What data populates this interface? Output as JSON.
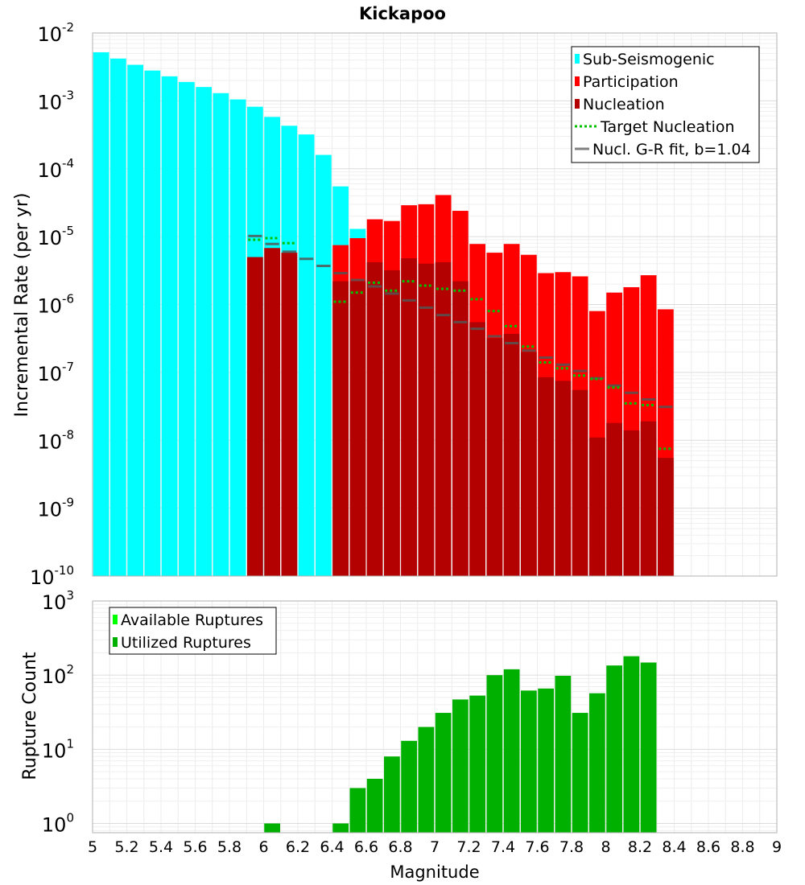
{
  "title": "Kickapoo",
  "xlabel": "Magnitude",
  "x_ticks": [
    "5",
    "5.2",
    "5.4",
    "5.6",
    "5.8",
    "6",
    "6.2",
    "6.4",
    "6.6",
    "6.8",
    "7",
    "7.2",
    "7.4",
    "7.6",
    "7.8",
    "8",
    "8.2",
    "8.4",
    "8.6",
    "8.8",
    "9"
  ],
  "chart_data": [
    {
      "type": "bar",
      "scale": "log",
      "ylabel": "Incremental Rate (per yr)",
      "xlim": [
        5,
        9
      ],
      "ylim": [
        1e-10,
        0.01
      ],
      "y_ticks": [
        {
          "base": "10",
          "exp": "-2"
        },
        {
          "base": "10",
          "exp": "-3"
        },
        {
          "base": "10",
          "exp": "-4"
        },
        {
          "base": "10",
          "exp": "-5"
        },
        {
          "base": "10",
          "exp": "-6"
        },
        {
          "base": "10",
          "exp": "-7"
        },
        {
          "base": "10",
          "exp": "-8"
        },
        {
          "base": "10",
          "exp": "-9"
        },
        {
          "base": "10",
          "exp": "-10"
        }
      ],
      "legend_position": "top-right",
      "legend": [
        "Sub-Seismogenic",
        "Participation",
        "Nucleation",
        "Target Nucleation",
        "Nucl. G-R fit, b=1.04"
      ],
      "colors": {
        "sub": "#00ffff",
        "participation": "#ff0000",
        "nucleation": "#b30000",
        "target": "#00c000",
        "fit": "#808080"
      },
      "series": [
        {
          "name": "Sub-Seismogenic",
          "x": [
            5.05,
            5.15,
            5.25,
            5.35,
            5.45,
            5.55,
            5.65,
            5.75,
            5.85,
            5.95,
            6.05,
            6.15,
            6.25,
            6.35,
            6.45,
            6.55
          ],
          "values": [
            0.0052,
            0.0042,
            0.0034,
            0.0028,
            0.0023,
            0.0019,
            0.0016,
            0.0013,
            0.00105,
            0.00082,
            0.00058,
            0.00043,
            0.00032,
            0.00016,
            5.5e-05,
            1.3e-05
          ]
        },
        {
          "name": "Participation",
          "x": [
            6.45,
            6.55,
            6.65,
            6.75,
            6.85,
            6.95,
            7.05,
            7.15,
            7.25,
            7.35,
            7.45,
            7.55,
            7.65,
            7.75,
            7.85,
            7.95,
            8.05,
            8.15,
            8.25,
            8.35
          ],
          "values": [
            7.5e-06,
            9.5e-06,
            1.8e-05,
            1.7e-05,
            2.9e-05,
            3e-05,
            4.1e-05,
            2.4e-05,
            7.8e-06,
            5.8e-06,
            7.8e-06,
            5.4e-06,
            2.9e-06,
            3e-06,
            2.6e-06,
            8e-07,
            1.5e-06,
            1.8e-06,
            2.7e-06,
            8.5e-07
          ]
        },
        {
          "name": "Nucleation",
          "x": [
            5.95,
            6.05,
            6.15,
            6.45,
            6.55,
            6.65,
            6.75,
            6.85,
            6.95,
            7.05,
            7.15,
            7.25,
            7.35,
            7.45,
            7.55,
            7.65,
            7.75,
            7.85,
            7.95,
            8.05,
            8.15,
            8.25,
            8.35
          ],
          "values": [
            5e-06,
            6.8e-06,
            5.8e-06,
            2.2e-06,
            2.2e-06,
            4.2e-06,
            3.2e-06,
            4.8e-06,
            4e-06,
            4.2e-06,
            2.2e-06,
            5.5e-07,
            3.2e-07,
            3.7e-07,
            2e-07,
            8.5e-08,
            7.5e-08,
            5.5e-08,
            1.1e-08,
            1.8e-08,
            1.4e-08,
            1.9e-08,
            5.5e-09
          ]
        },
        {
          "name": "Target Nucleation",
          "x": [
            5.95,
            6.05,
            6.15,
            6.45,
            6.55,
            6.65,
            6.75,
            6.85,
            6.95,
            7.05,
            7.15,
            7.25,
            7.35,
            7.45,
            7.55,
            7.65,
            7.75,
            7.85,
            7.95,
            8.05,
            8.15,
            8.25,
            8.35
          ],
          "values": [
            9e-06,
            9.5e-06,
            8e-06,
            1.1e-06,
            1.5e-06,
            2.1e-06,
            1.6e-06,
            2.2e-06,
            1.9e-06,
            1.7e-06,
            1.6e-06,
            1.2e-06,
            8e-07,
            4.8e-07,
            2.4e-07,
            1.4e-07,
            1.15e-07,
            9e-08,
            8e-08,
            6e-08,
            3.5e-08,
            3.3e-08,
            7.5e-09
          ]
        },
        {
          "name": "Nucl. G-R fit, b=1.04",
          "x": [
            5.95,
            6.05,
            6.15,
            6.25,
            6.35,
            6.45,
            6.55,
            6.65,
            6.75,
            6.85,
            6.95,
            7.05,
            7.15,
            7.25,
            7.35,
            7.45,
            7.55,
            7.65,
            7.75,
            7.85,
            7.95,
            8.05,
            8.15,
            8.25,
            8.35
          ],
          "values": [
            1.02e-05,
            7.8e-06,
            6e-06,
            4.7e-06,
            3.7e-06,
            2.9e-06,
            2.3e-06,
            1.85e-06,
            1.45e-06,
            1.15e-06,
            9e-07,
            7e-07,
            5.5e-07,
            4.4e-07,
            3.4e-07,
            2.7e-07,
            2.1e-07,
            1.65e-07,
            1.3e-07,
            1.05e-07,
            8.2e-08,
            6.4e-08,
            5e-08,
            4e-08,
            3.1e-08
          ]
        }
      ]
    },
    {
      "type": "bar",
      "scale": "log",
      "ylabel": "Rupture Count",
      "xlim": [
        5,
        9
      ],
      "ylim": [
        0.75,
        1000
      ],
      "y_ticks": [
        {
          "base": "10",
          "exp": "3"
        },
        {
          "base": "10",
          "exp": "2"
        },
        {
          "base": "10",
          "exp": "1"
        },
        {
          "base": "10",
          "exp": "0"
        }
      ],
      "legend_position": "top-left",
      "legend": [
        "Available Ruptures",
        "Utilized Ruptures"
      ],
      "colors": {
        "available": "#00ff00",
        "utilized": "#00b000"
      },
      "series": [
        {
          "name": "Utilized Ruptures",
          "x": [
            6.05,
            6.45,
            6.55,
            6.65,
            6.75,
            6.85,
            6.95,
            7.05,
            7.15,
            7.25,
            7.35,
            7.45,
            7.55,
            7.65,
            7.75,
            7.85,
            7.95,
            8.05,
            8.15,
            8.25
          ],
          "values": [
            1,
            1,
            3,
            4,
            8,
            13,
            20,
            31,
            47,
            53,
            100,
            120,
            62,
            66,
            98,
            31,
            57,
            135,
            180,
            148
          ]
        }
      ]
    }
  ]
}
